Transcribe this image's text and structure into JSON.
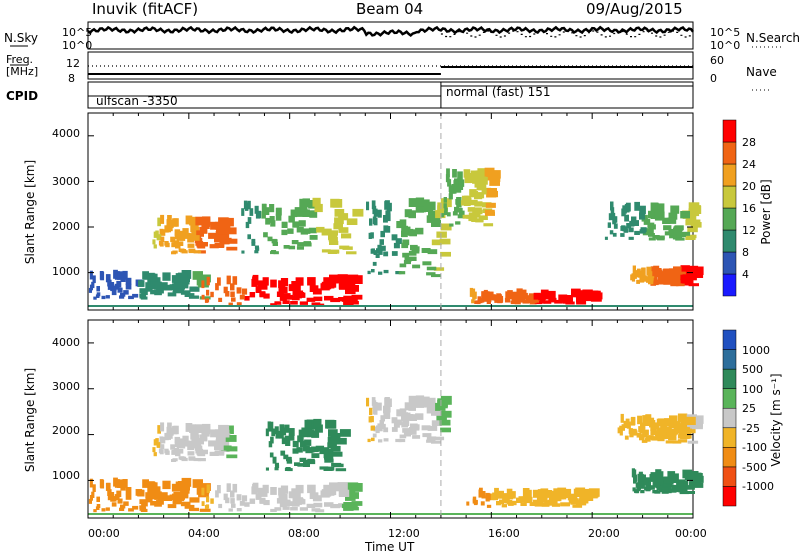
{
  "header": {
    "station": "Inuvik (fitACF)",
    "beam": "Beam 04",
    "date": "09/Aug/2015"
  },
  "top_panels": {
    "nsky_label": "N.Sky",
    "nsky_ticks": [
      "10^5",
      "10^0"
    ],
    "nsearch_label": "N.Search",
    "nsearch_ticks": [
      "10^5",
      "10^0"
    ],
    "freq_label_1": "Freq.",
    "freq_label_2": "[MHz]",
    "freq_ticks": [
      "12",
      "8"
    ],
    "nave_label": "Nave",
    "nave_ticks": [
      "60",
      "0"
    ],
    "cpid_label": "CPID",
    "cpid_modes": [
      {
        "label": "ulfscan -3350",
        "start": "00:00",
        "end": "14:00"
      },
      {
        "label": "normal (fast) 151",
        "start": "14:00",
        "end": "24:00"
      }
    ]
  },
  "x_axis": {
    "label": "Time UT",
    "ticks": [
      "00:00",
      "04:00",
      "08:00",
      "12:00",
      "16:00",
      "20:00",
      "00:00"
    ],
    "range_hours": [
      0,
      24
    ]
  },
  "power_panel": {
    "ylabel": "Slant Range [km]",
    "yticks": [
      "4000",
      "3000",
      "2000",
      "1000"
    ],
    "colorbar_label": "Power [dB]",
    "colorbar_ticks": [
      "28",
      "24",
      "20",
      "16",
      "12",
      "8",
      "4"
    ],
    "colors": [
      "#1a1aff",
      "#2d55b4",
      "#2f8a6e",
      "#55a855",
      "#c8c83c",
      "#f0a020",
      "#f06414",
      "#ff0000"
    ]
  },
  "velocity_panel": {
    "ylabel": "Slant Range [km]",
    "yticks": [
      "4000",
      "3000",
      "2000",
      "1000"
    ],
    "colorbar_label": "Velocity [m s⁻¹]",
    "colorbar_ticks": [
      "1000",
      "500",
      "100",
      "25",
      "-25",
      "-100",
      "-500",
      "-1000"
    ],
    "colors": [
      "#2050c0",
      "#2d6e9b",
      "#2f8a5a",
      "#5ab45a",
      "#c8c8c8",
      "#f0b428",
      "#f08c14",
      "#f05014",
      "#ff0000"
    ]
  },
  "chart_data": [
    {
      "type": "heatmap",
      "title": "Power",
      "x_range": [
        "00:00",
        "24:00"
      ],
      "y_range_km": [
        180,
        4500
      ],
      "colorbar_range_db": [
        0,
        30
      ],
      "regions": [
        {
          "t0": 0.0,
          "t1": 4.5,
          "r0": 400,
          "r1": 1000,
          "power": 8
        },
        {
          "t0": 2.5,
          "t1": 5.5,
          "r0": 1400,
          "r1": 2200,
          "power": 22
        },
        {
          "t0": 4.5,
          "t1": 10.5,
          "r0": 250,
          "r1": 900,
          "power": 28
        },
        {
          "t0": 6.0,
          "t1": 10.5,
          "r0": 1400,
          "r1": 2600,
          "power": 14
        },
        {
          "t0": 11.0,
          "t1": 14.0,
          "r0": 900,
          "r1": 2600,
          "power": 12
        },
        {
          "t0": 14.0,
          "t1": 16.0,
          "r0": 2000,
          "r1": 3300,
          "power": 16
        },
        {
          "t0": 15.0,
          "t1": 20.0,
          "r0": 300,
          "r1": 600,
          "power": 26
        },
        {
          "t0": 21.5,
          "t1": 24.0,
          "r0": 700,
          "r1": 1100,
          "power": 24
        },
        {
          "t0": 20.5,
          "t1": 24.0,
          "r0": 1700,
          "r1": 2500,
          "power": 12
        }
      ]
    },
    {
      "type": "heatmap",
      "title": "Velocity",
      "x_range": [
        "00:00",
        "24:00"
      ],
      "y_range_km": [
        180,
        4500
      ],
      "colorbar_range_ms": [
        -1000,
        1000
      ],
      "regions": [
        {
          "t0": 0.0,
          "t1": 4.5,
          "r0": 300,
          "r1": 1000,
          "velocity": -300
        },
        {
          "t0": 2.5,
          "t1": 5.5,
          "r0": 1400,
          "r1": 2200,
          "velocity": 0
        },
        {
          "t0": 4.5,
          "t1": 10.5,
          "r0": 300,
          "r1": 900,
          "velocity": 0
        },
        {
          "t0": 7.0,
          "t1": 10.0,
          "r0": 1200,
          "r1": 2300,
          "velocity": 150
        },
        {
          "t0": 11.0,
          "t1": 14.0,
          "r0": 1800,
          "r1": 2800,
          "velocity": 0
        },
        {
          "t0": 15.0,
          "t1": 20.0,
          "r0": 400,
          "r1": 800,
          "velocity": -80
        },
        {
          "t0": 21.5,
          "t1": 24.0,
          "r0": 700,
          "r1": 1200,
          "velocity": 150
        },
        {
          "t0": 21.0,
          "t1": 24.0,
          "r0": 1800,
          "r1": 2400,
          "velocity": -50
        }
      ]
    }
  ]
}
